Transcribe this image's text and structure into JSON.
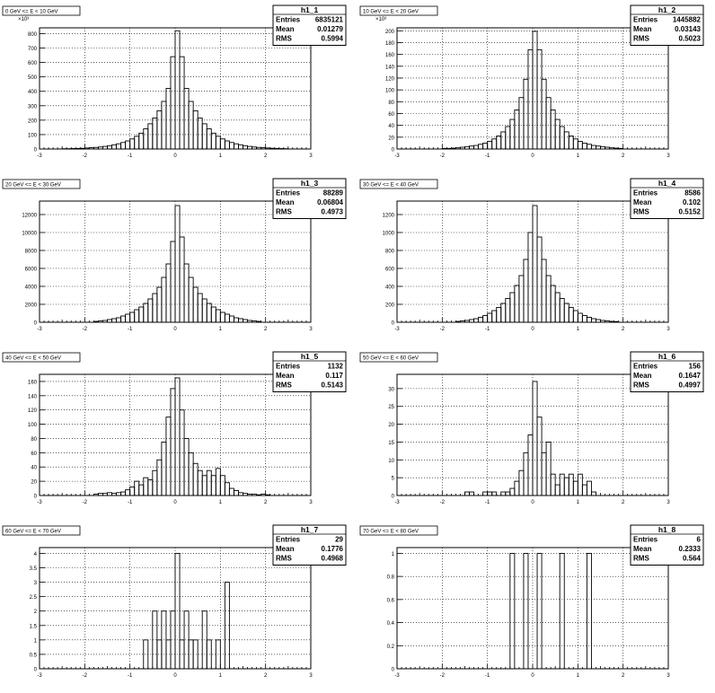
{
  "chart_data": [
    {
      "type": "bar",
      "name": "h1_1",
      "title": "0 GeV <= E < 10 GeV",
      "multiplier": "×10³",
      "stats": {
        "entries": "6835121",
        "mean": "0.01279",
        "rms": "0.5994"
      },
      "xlim": [
        -3,
        3
      ],
      "ylim": [
        0,
        840
      ],
      "yticks": [
        0,
        100,
        200,
        300,
        400,
        500,
        600,
        700,
        800
      ],
      "bin_width": 0.1,
      "x": [
        -2.5,
        -2.4,
        -2.3,
        -2.2,
        -2.1,
        -2.0,
        -1.9,
        -1.8,
        -1.7,
        -1.6,
        -1.5,
        -1.4,
        -1.3,
        -1.2,
        -1.1,
        -1.0,
        -0.9,
        -0.8,
        -0.7,
        -0.6,
        -0.5,
        -0.4,
        -0.3,
        -0.2,
        -0.1,
        0.0,
        0.1,
        0.2,
        0.3,
        0.4,
        0.5,
        0.6,
        0.7,
        0.8,
        0.9,
        1.0,
        1.1,
        1.2,
        1.3,
        1.4,
        1.5,
        1.6,
        1.7,
        1.8,
        1.9,
        2.0,
        2.1,
        2.2,
        2.3,
        2.4
      ],
      "values": [
        2,
        2,
        3,
        4,
        5,
        7,
        9,
        11,
        14,
        18,
        23,
        29,
        36,
        45,
        56,
        70,
        88,
        110,
        140,
        175,
        215,
        265,
        330,
        420,
        640,
        820,
        640,
        420,
        330,
        265,
        215,
        175,
        140,
        110,
        88,
        70,
        56,
        45,
        36,
        29,
        23,
        18,
        14,
        11,
        9,
        7,
        5,
        4,
        3,
        2
      ]
    },
    {
      "type": "bar",
      "name": "h1_2",
      "title": "10 GeV <= E < 20 GeV",
      "multiplier": "×10³",
      "stats": {
        "entries": "1445882",
        "mean": "0.03143",
        "rms": "0.5023"
      },
      "xlim": [
        -3,
        3
      ],
      "ylim": [
        0,
        205
      ],
      "yticks": [
        0,
        20,
        40,
        60,
        80,
        100,
        120,
        140,
        160,
        180,
        200
      ],
      "bin_width": 0.1,
      "x": [
        -2.0,
        -1.9,
        -1.8,
        -1.7,
        -1.6,
        -1.5,
        -1.4,
        -1.3,
        -1.2,
        -1.1,
        -1.0,
        -0.9,
        -0.8,
        -0.7,
        -0.6,
        -0.5,
        -0.4,
        -0.3,
        -0.2,
        -0.1,
        0.0,
        0.1,
        0.2,
        0.3,
        0.4,
        0.5,
        0.6,
        0.7,
        0.8,
        0.9,
        1.0,
        1.1,
        1.2,
        1.3,
        1.4,
        1.5,
        1.6,
        1.7,
        1.8,
        1.9
      ],
      "values": [
        1,
        1,
        1.5,
        2,
        3,
        4,
        5,
        6,
        8,
        10,
        13,
        17,
        22,
        29,
        38,
        50,
        66,
        87,
        118,
        168,
        199,
        168,
        118,
        87,
        66,
        50,
        38,
        29,
        22,
        17,
        13,
        10,
        8,
        6,
        5,
        4,
        3,
        2,
        1.5,
        1
      ]
    },
    {
      "type": "bar",
      "name": "h1_3",
      "title": "20 GeV <= E < 30 GeV",
      "multiplier": "",
      "stats": {
        "entries": "88289",
        "mean": "0.06804",
        "rms": "0.4973"
      },
      "xlim": [
        -3,
        3
      ],
      "ylim": [
        0,
        13500
      ],
      "yticks": [
        0,
        2000,
        4000,
        6000,
        8000,
        10000,
        12000
      ],
      "bin_width": 0.1,
      "x": [
        -1.8,
        -1.7,
        -1.6,
        -1.5,
        -1.4,
        -1.3,
        -1.2,
        -1.1,
        -1.0,
        -0.9,
        -0.8,
        -0.7,
        -0.6,
        -0.5,
        -0.4,
        -0.3,
        -0.2,
        -0.1,
        0.0,
        0.1,
        0.2,
        0.3,
        0.4,
        0.5,
        0.6,
        0.7,
        0.8,
        0.9,
        1.0,
        1.1,
        1.2,
        1.3,
        1.4,
        1.5,
        1.6,
        1.7,
        1.8
      ],
      "values": [
        100,
        150,
        200,
        300,
        400,
        500,
        700,
        900,
        1100,
        1400,
        1700,
        2100,
        2600,
        3200,
        3900,
        5000,
        6500,
        9000,
        13000,
        9500,
        6500,
        5000,
        3900,
        3200,
        2600,
        2100,
        1700,
        1400,
        1100,
        900,
        700,
        500,
        400,
        300,
        200,
        150,
        100
      ]
    },
    {
      "type": "bar",
      "name": "h1_4",
      "title": "30 GeV <= E < 40 GeV",
      "multiplier": "",
      "stats": {
        "entries": "8586",
        "mean": "0.102",
        "rms": "0.5152"
      },
      "xlim": [
        -3,
        3
      ],
      "ylim": [
        0,
        1350
      ],
      "yticks": [
        0,
        200,
        400,
        600,
        800,
        1000,
        1200
      ],
      "bin_width": 0.1,
      "x": [
        -1.7,
        -1.6,
        -1.5,
        -1.4,
        -1.3,
        -1.2,
        -1.1,
        -1.0,
        -0.9,
        -0.8,
        -0.7,
        -0.6,
        -0.5,
        -0.4,
        -0.3,
        -0.2,
        -0.1,
        0.0,
        0.1,
        0.2,
        0.3,
        0.4,
        0.5,
        0.6,
        0.7,
        0.8,
        0.9,
        1.0,
        1.1,
        1.2,
        1.3,
        1.4,
        1.5,
        1.6,
        1.7,
        1.8
      ],
      "values": [
        10,
        15,
        20,
        30,
        40,
        55,
        75,
        100,
        130,
        165,
        210,
        265,
        330,
        410,
        520,
        700,
        1000,
        1300,
        950,
        700,
        520,
        410,
        330,
        265,
        210,
        165,
        130,
        100,
        75,
        55,
        40,
        30,
        20,
        15,
        10,
        8
      ]
    },
    {
      "type": "bar",
      "name": "h1_5",
      "title": "40 GeV <= E < 50 GeV",
      "multiplier": "",
      "stats": {
        "entries": "1132",
        "mean": "0.117",
        "rms": "0.5143"
      },
      "xlim": [
        -3,
        3
      ],
      "ylim": [
        0,
        170
      ],
      "yticks": [
        0,
        20,
        40,
        60,
        80,
        100,
        120,
        140,
        160
      ],
      "bin_width": 0.1,
      "x": [
        -1.8,
        -1.7,
        -1.6,
        -1.5,
        -1.4,
        -1.3,
        -1.2,
        -1.1,
        -1.0,
        -0.9,
        -0.8,
        -0.7,
        -0.6,
        -0.5,
        -0.4,
        -0.3,
        -0.2,
        -0.1,
        0.0,
        0.1,
        0.2,
        0.3,
        0.4,
        0.5,
        0.6,
        0.7,
        0.8,
        0.9,
        1.0,
        1.1,
        1.2,
        1.3,
        1.4,
        1.5,
        1.6,
        1.7,
        1.8,
        1.9,
        2.0
      ],
      "values": [
        2,
        3,
        3,
        4,
        3,
        4,
        5,
        8,
        12,
        20,
        15,
        25,
        22,
        35,
        50,
        75,
        110,
        150,
        165,
        120,
        80,
        60,
        45,
        35,
        28,
        35,
        28,
        38,
        28,
        18,
        10,
        7,
        4,
        3,
        2,
        2,
        1,
        2,
        1
      ]
    },
    {
      "type": "bar",
      "name": "h1_6",
      "title": "50 GeV <= E < 60 GeV",
      "multiplier": "",
      "stats": {
        "entries": "156",
        "mean": "0.1647",
        "rms": "0.4997"
      },
      "xlim": [
        -3,
        3
      ],
      "ylim": [
        0,
        34
      ],
      "yticks": [
        0,
        5,
        10,
        15,
        20,
        25,
        30
      ],
      "bin_width": 0.1,
      "x": [
        -1.5,
        -1.4,
        -1.1,
        -1.0,
        -0.9,
        -0.7,
        -0.6,
        -0.5,
        -0.4,
        -0.3,
        -0.2,
        -0.1,
        0.0,
        0.1,
        0.2,
        0.3,
        0.4,
        0.5,
        0.6,
        0.7,
        0.8,
        0.9,
        1.0,
        1.1,
        1.2,
        1.3
      ],
      "values": [
        1,
        1,
        1,
        1,
        1,
        1,
        1,
        2,
        4,
        7,
        12,
        17,
        32,
        22,
        12,
        15,
        6,
        3,
        6,
        5,
        6,
        4,
        6,
        3,
        4,
        1
      ]
    },
    {
      "type": "bar",
      "name": "h1_7",
      "title": "60 GeV <= E < 70 GeV",
      "multiplier": "",
      "stats": {
        "entries": "29",
        "mean": "0.1776",
        "rms": "0.4968"
      },
      "xlim": [
        -3,
        3
      ],
      "ylim": [
        0,
        4.2
      ],
      "yticks": [
        0,
        0.5,
        1,
        1.5,
        2,
        2.5,
        3,
        3.5,
        4
      ],
      "bin_width": 0.1,
      "x": [
        -0.7,
        -0.6,
        -0.5,
        -0.4,
        -0.3,
        -0.2,
        -0.1,
        0.0,
        0.1,
        0.2,
        0.3,
        0.4,
        0.5,
        0.6,
        0.7,
        0.8,
        0.9,
        1.0,
        1.1
      ],
      "values": [
        1,
        0,
        2,
        1,
        2,
        1,
        2,
        4,
        1,
        2,
        1,
        1,
        0,
        2,
        1,
        0,
        1,
        0,
        3
      ]
    },
    {
      "type": "bar",
      "name": "h1_8",
      "title": "70 GeV <= E < 80 GeV",
      "multiplier": "",
      "stats": {
        "entries": "6",
        "mean": "0.2333",
        "rms": "0.564"
      },
      "xlim": [
        -3,
        3
      ],
      "ylim": [
        0,
        1.05
      ],
      "yticks": [
        0,
        0.2,
        0.4,
        0.6,
        0.8,
        1
      ],
      "bin_width": 0.1,
      "x": [
        -0.5,
        -0.2,
        0.1,
        0.6,
        1.2
      ],
      "values": [
        1,
        1,
        1,
        1,
        1
      ]
    }
  ],
  "xticks": [
    -3,
    -2,
    -1,
    0,
    1,
    2,
    3
  ],
  "stat_labels": {
    "entries": "Entries",
    "mean": "Mean",
    "rms": "RMS"
  }
}
